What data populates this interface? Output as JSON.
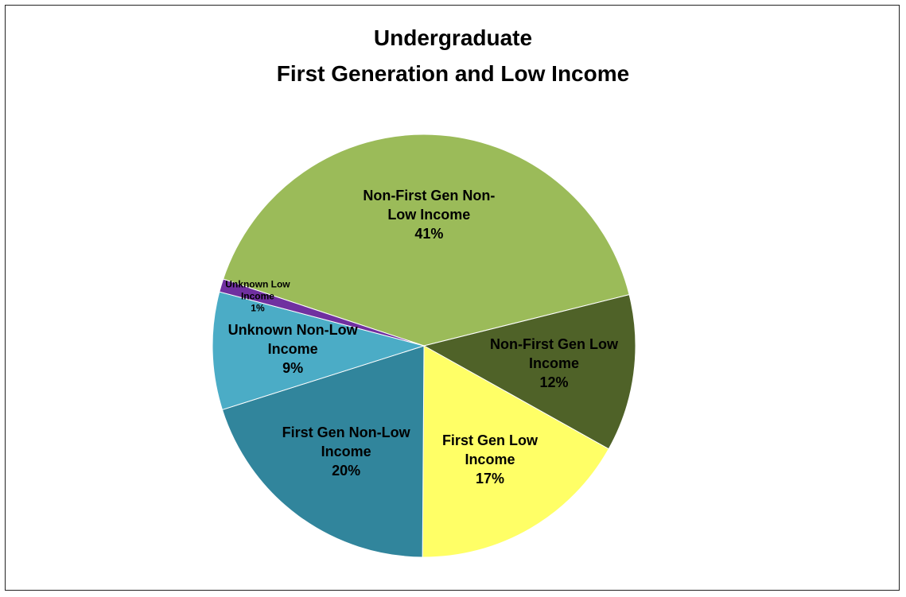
{
  "chart_data": {
    "type": "pie",
    "title_lines": [
      "Undergraduate",
      "First Generation and Low Income"
    ],
    "categories": [
      "Non-First Gen Non-Low Income",
      "Non-First Gen Low Income",
      "First Gen Low Income",
      "First Gen Non-Low Income",
      "Unknown Non-Low Income",
      "Unknown Low Income"
    ],
    "values": [
      41,
      12,
      17,
      20,
      9,
      1
    ],
    "value_labels": [
      "41%",
      "12%",
      "17%",
      "20%",
      "9%",
      "1%"
    ],
    "colors": [
      "#9BBB59",
      "#4F6228",
      "#FFFF66",
      "#31859C",
      "#4BACC6",
      "#7030A0"
    ]
  }
}
